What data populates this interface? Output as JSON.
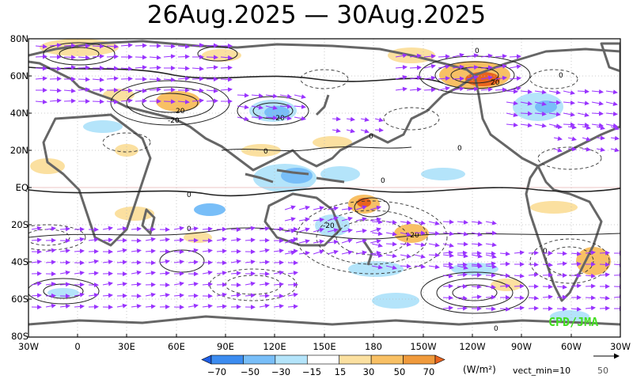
{
  "title": "26Aug.2025 — 30Aug.2025",
  "latitude_labels": [
    "80N",
    "60N",
    "40N",
    "20N",
    "EQ",
    "20S",
    "40S",
    "60S",
    "80S"
  ],
  "longitude_labels": [
    "30W",
    "0",
    "30E",
    "60E",
    "90E",
    "120E",
    "150E",
    "180",
    "150W",
    "120W",
    "90W",
    "60W",
    "30W"
  ],
  "contour_labels": [
    "0",
    "20",
    "-20",
    "-20",
    "0",
    "0",
    "0",
    "0",
    "-20",
    "-20",
    "20"
  ],
  "colorbar": {
    "tick_labels": [
      "−70",
      "−50",
      "−30",
      "−15",
      "15",
      "30",
      "50",
      "70"
    ],
    "colors": [
      "#1e5ee6",
      "#3c8cf0",
      "#78bef8",
      "#b4e4fa",
      "#ffffff",
      "#fbe0a0",
      "#f8c064",
      "#f09a3c",
      "#e8641e"
    ],
    "units": "(W/m²)"
  },
  "vector_legend": {
    "threshold_text": "vect_min=10",
    "reference_value": "50"
  },
  "credit": "CPD/JMA",
  "map_colors": {
    "land_outline": "#666666",
    "vector_arrows": "#9933ff",
    "positive_anomaly": "#f8c064",
    "negative_anomaly": "#78bef8"
  }
}
